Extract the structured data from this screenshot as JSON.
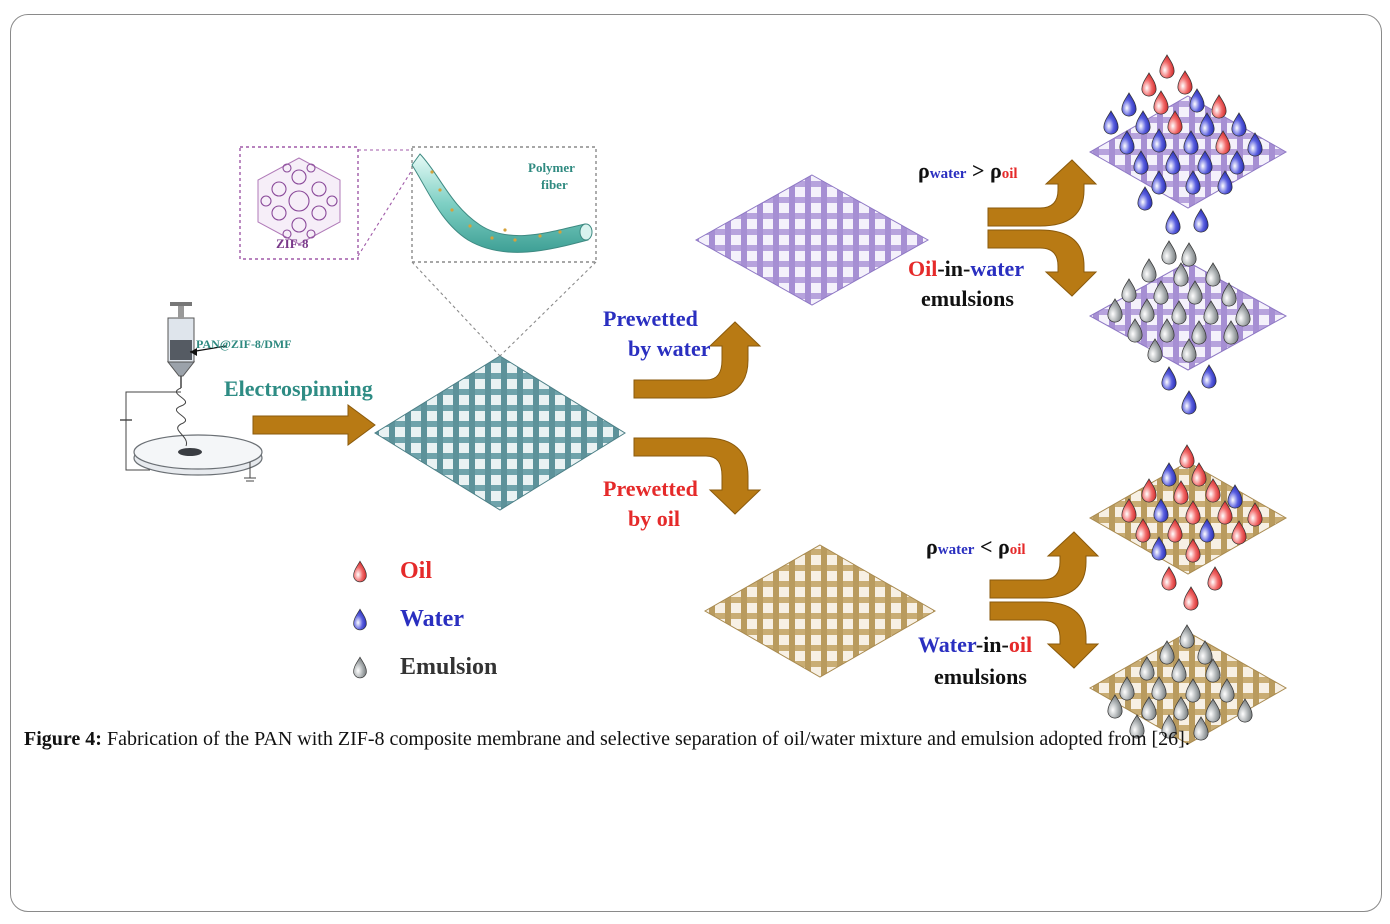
{
  "figure": {
    "inset_zif_label": "ZIF-8",
    "inset_fiber_label_1": "Polymer",
    "inset_fiber_label_2": "fiber",
    "syringe_label": "PAN@ZIF-8/DMF",
    "process_label": "Electrospinning",
    "branch_water_1": "Prewetted",
    "branch_water_2": "by water",
    "branch_oil_1": "Prewetted",
    "branch_oil_2": "by oil",
    "density_upper": {
      "rho": "ρ",
      "water": "water",
      "op": ">",
      "oil": "oil"
    },
    "density_lower": {
      "rho": "ρ",
      "water": "water",
      "op": "<",
      "oil": "oil"
    },
    "ow_emulsion": {
      "part1": "Oil",
      "part2": "-in-",
      "part3": "water",
      "line2": "emulsions"
    },
    "wo_emulsion": {
      "part1": "Water",
      "part2": "-in-",
      "part3": "oil",
      "line2": "emulsions"
    },
    "legend": [
      {
        "label": "Oil",
        "color": "#e8262a"
      },
      {
        "label": "Water",
        "color": "#2433c8"
      },
      {
        "label": "Emulsion",
        "color": "#333333"
      }
    ],
    "colors": {
      "teal_membrane": "#6fa3ab",
      "purple_membrane": "#b7a3dd",
      "gold_membrane": "#c9ad74",
      "arrow": "#b87a14",
      "oil_drop": "#f26a6a",
      "water_drop": "#5a5fe0",
      "emulsion_drop": "#a9aeb0"
    }
  },
  "caption": {
    "label": "Figure 4:",
    "text": " Fabrication of the PAN with ZIF-8 composite membrane and selective separation of oil/water mixture and emulsion adopted from [26]."
  }
}
